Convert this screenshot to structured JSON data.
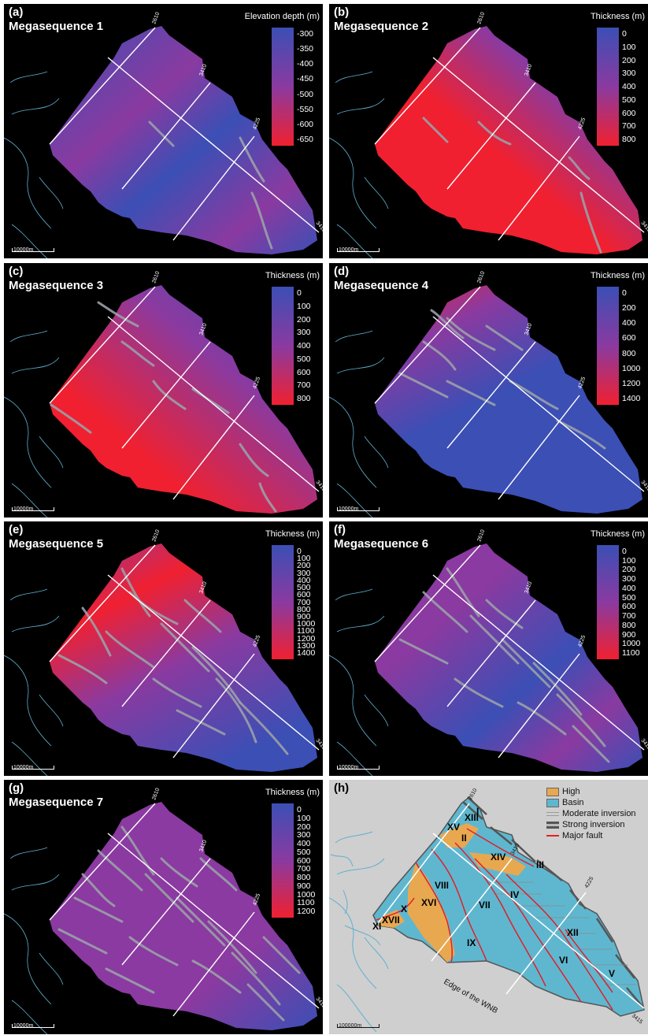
{
  "panels": [
    {
      "id": "a",
      "label": "(a)",
      "title": "Megasequence 1",
      "legend_title": "Elevation depth (m)",
      "ticks": [
        "-300",
        "-350",
        "-400",
        "-450",
        "-500",
        "-550",
        "-600",
        "-650"
      ],
      "colors": {
        "low": "#3b4fb5",
        "mid": "#8a3aa0",
        "high": "#f02030"
      },
      "line_labels": [
        "2610",
        "3410",
        "4225",
        "3415"
      ],
      "scale_label": "10000m",
      "style": "a"
    },
    {
      "id": "b",
      "label": "(b)",
      "title": "Megasequence 2",
      "legend_title": "Thickness (m)",
      "ticks": [
        "0",
        "100",
        "200",
        "300",
        "400",
        "500",
        "600",
        "700",
        "800"
      ],
      "colors": {
        "low": "#3b4fb5",
        "mid": "#8a3aa0",
        "high": "#f02030"
      },
      "line_labels": [
        "2610",
        "3410",
        "4225",
        "3415"
      ],
      "scale_label": "10000m",
      "style": "b"
    },
    {
      "id": "c",
      "label": "(c)",
      "title": "Megasequence 3",
      "legend_title": "Thickness (m)",
      "ticks": [
        "0",
        "100",
        "200",
        "300",
        "400",
        "500",
        "600",
        "700",
        "800"
      ],
      "colors": {
        "low": "#3b4fb5",
        "mid": "#8a3aa0",
        "high": "#f02030"
      },
      "line_labels": [
        "2610",
        "3410",
        "4225",
        "3415"
      ],
      "scale_label": "10000m",
      "style": "c"
    },
    {
      "id": "d",
      "label": "(d)",
      "title": "Megasequence 4",
      "legend_title": "Thickness (m)",
      "ticks": [
        "0",
        "200",
        "400",
        "600",
        "800",
        "1000",
        "1200",
        "1400"
      ],
      "colors": {
        "low": "#3b4fb5",
        "mid": "#8a3aa0",
        "high": "#f02030"
      },
      "line_labels": [
        "2610",
        "3410",
        "4225",
        "3415"
      ],
      "scale_label": "10000m",
      "style": "d"
    },
    {
      "id": "e",
      "label": "(e)",
      "title": "Megasequence 5",
      "legend_title": "Thickness (m)",
      "ticks": [
        "0",
        "100",
        "200",
        "300",
        "400",
        "500",
        "600",
        "700",
        "800",
        "900",
        "1000",
        "1100",
        "1200",
        "1300",
        "1400"
      ],
      "colors": {
        "low": "#3b4fb5",
        "mid": "#8a3aa0",
        "high": "#f02030"
      },
      "line_labels": [
        "2610",
        "3410",
        "4225",
        "3415"
      ],
      "scale_label": "10000m",
      "style": "e"
    },
    {
      "id": "f",
      "label": "(f)",
      "title": "Megasequence 6",
      "legend_title": "Thickness (m)",
      "ticks": [
        "0",
        "100",
        "200",
        "300",
        "400",
        "500",
        "600",
        "700",
        "800",
        "900",
        "1000",
        "1100"
      ],
      "colors": {
        "low": "#3b4fb5",
        "mid": "#8a3aa0",
        "high": "#f02030"
      },
      "line_labels": [
        "2610",
        "3410",
        "4225",
        "3415"
      ],
      "scale_label": "10000m",
      "style": "f"
    },
    {
      "id": "g",
      "label": "(g)",
      "title": "Megasequence 7",
      "legend_title": "Thickness (m)",
      "ticks": [
        "0",
        "100",
        "200",
        "300",
        "400",
        "500",
        "600",
        "700",
        "800",
        "900",
        "1000",
        "1100",
        "1200"
      ],
      "colors": {
        "low": "#3b4fb5",
        "mid": "#8a3aa0",
        "high": "#f02030"
      },
      "line_labels": [
        "2610",
        "3410",
        "4225",
        "3415"
      ],
      "scale_label": "10000m",
      "style": "g"
    }
  ],
  "panel_h": {
    "label": "(h)",
    "legend": [
      {
        "kind": "High",
        "label": "High",
        "color": "#e8a850"
      },
      {
        "kind": "Basin",
        "label": "Basin",
        "color": "#5fb7cf"
      },
      {
        "kind": "moderate",
        "label": "Moderate inversion",
        "color": "#999999"
      },
      {
        "kind": "strong",
        "label": "Strong inversion",
        "color": "#555555"
      },
      {
        "kind": "fault",
        "label": "Major fault",
        "color": "#e0202a"
      }
    ],
    "regions": [
      "I",
      "II",
      "III",
      "IV",
      "V",
      "VI",
      "VII",
      "VIII",
      "IX",
      "X",
      "XI",
      "XII",
      "XIII",
      "XIV",
      "XV",
      "XVI",
      "XVII"
    ],
    "edge_label": "Edge of the WNB",
    "line_labels": [
      "2610",
      "3410",
      "4225",
      "3415"
    ],
    "scale_label": "100000m"
  }
}
